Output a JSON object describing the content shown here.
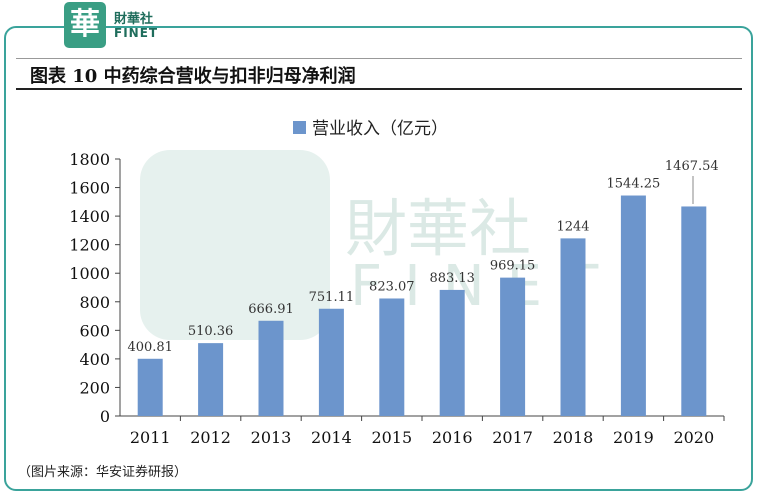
{
  "header": {
    "logo_char": "華",
    "logo_name": "財華社",
    "logo_en": "FINET",
    "title": "图表 10  中药综合营收与扣非归母净利润"
  },
  "footer": {
    "source": "（图片来源：华安证券研报）"
  },
  "colors": {
    "bar": "#6c95cc",
    "frame": "#3aa39b",
    "logo": "#3a9e84"
  },
  "chart_data": {
    "type": "bar",
    "categories": [
      "2011",
      "2012",
      "2013",
      "2014",
      "2015",
      "2016",
      "2017",
      "2018",
      "2019",
      "2020"
    ],
    "series": [
      {
        "name": "营业收入（亿元）",
        "values": [
          400.81,
          510.36,
          666.91,
          751.11,
          823.07,
          883.13,
          969.15,
          1244,
          1544.25,
          1467.54
        ]
      }
    ],
    "data_labels": [
      "400.81",
      "510.36",
      "666.91",
      "751.11",
      "823.07",
      "883.13",
      "969.15",
      "1244",
      "1544.25",
      "1467.54"
    ],
    "ylim": [
      0,
      1800
    ],
    "yticks": [
      0,
      200,
      400,
      600,
      800,
      1000,
      1200,
      1400,
      1600,
      1800
    ],
    "legend_position": "top-center",
    "grid": false
  }
}
